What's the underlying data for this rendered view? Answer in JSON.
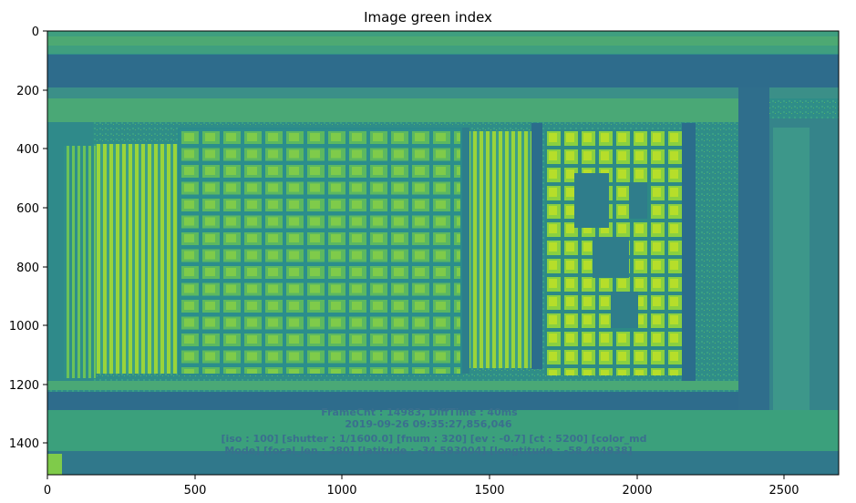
{
  "figure": {
    "title": "Image green index",
    "x_ticks": [
      "0",
      "500",
      "1000",
      "1500",
      "2000",
      "2500"
    ],
    "y_ticks": [
      "0",
      "200",
      "400",
      "600",
      "800",
      "1000",
      "1200",
      "1400"
    ],
    "colormap": "viridis",
    "colors": {
      "low": "#2c5f8a",
      "mid": "#2a9c8a",
      "high": "#c8e020",
      "frame": "#000000"
    }
  },
  "image_overlay": {
    "line1": "FrameCnt : 14983, DiffTime : 40ms",
    "line2": "2019-09-26 09:35:27,856,046",
    "line3": "[iso : 100] [shutter : 1/1600.0] [fnum : 320] [ev : -0.7] [ct : 5200] [color_md",
    "line4": "Mode] [focal_len : 280] [latitude : -34.593004] [longtitude : -58.484938]"
  }
}
